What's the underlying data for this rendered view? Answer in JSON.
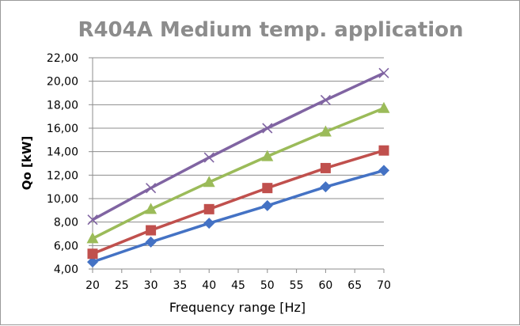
{
  "chart_data": {
    "type": "line",
    "title": "R404A Medium temp. application",
    "xlabel": "Frequency range [Hz]",
    "ylabel": "Qo [kW]",
    "x": [
      20,
      30,
      40,
      50,
      60,
      70
    ],
    "xlim": [
      20,
      70
    ],
    "x_ticks": [
      "20",
      "25",
      "30",
      "35",
      "40",
      "45",
      "50",
      "55",
      "60",
      "65",
      "70"
    ],
    "ylim": [
      4,
      22
    ],
    "y_ticks": [
      "4,00",
      "6,00",
      "8,00",
      "10,00",
      "12,00",
      "14,00",
      "16,00",
      "18,00",
      "20,00",
      "22,00"
    ],
    "grid": "horizontal",
    "legend": "none",
    "series": [
      {
        "values": [
          4.6,
          6.3,
          7.9,
          9.4,
          11.0,
          12.4
        ],
        "color": "#4472c4",
        "marker": "diamond"
      },
      {
        "values": [
          5.3,
          7.3,
          9.1,
          10.9,
          12.6,
          14.1
        ],
        "color": "#c0504d",
        "marker": "square"
      },
      {
        "values": [
          6.6,
          9.1,
          11.4,
          13.6,
          15.7,
          17.7
        ],
        "color": "#9bbb59",
        "marker": "triangle"
      },
      {
        "values": [
          8.2,
          10.9,
          13.5,
          16.0,
          18.4,
          20.7
        ],
        "color": "#8064a2",
        "marker": "x"
      }
    ]
  }
}
